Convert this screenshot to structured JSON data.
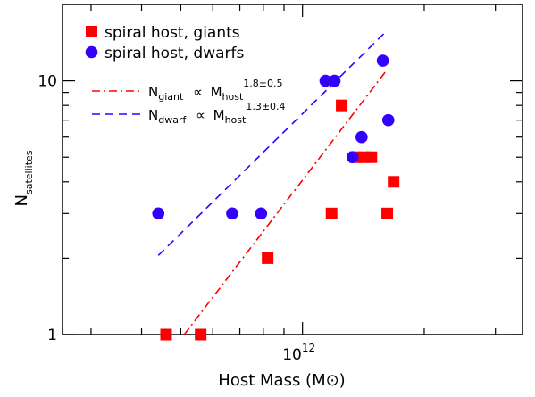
{
  "chart_data": {
    "type": "scatter",
    "xlabel": "Host Mass (M⊙)",
    "ylabel_main": "N",
    "ylabel_sub": "satellites",
    "x_scale": "log",
    "y_scale": "log",
    "xlim": [
      255000000000.0,
      3500000000000.0
    ],
    "ylim": [
      1,
      20
    ],
    "x_ticks": [
      {
        "value": 1000000000000.0,
        "label_base": "10",
        "label_exp": "12"
      }
    ],
    "y_ticks": [
      {
        "value": 1,
        "label": "1"
      },
      {
        "value": 10,
        "label": "10"
      }
    ],
    "legend_position": "top-left",
    "series": [
      {
        "name": "spiral host, giants",
        "marker": "square",
        "color": "#ff0000",
        "points": [
          {
            "x": 460000000000.0,
            "y": 1
          },
          {
            "x": 560000000000.0,
            "y": 1
          },
          {
            "x": 820000000000.0,
            "y": 2
          },
          {
            "x": 1180000000000.0,
            "y": 3
          },
          {
            "x": 1250000000000.0,
            "y": 8
          },
          {
            "x": 1350000000000.0,
            "y": 5
          },
          {
            "x": 1420000000000.0,
            "y": 5
          },
          {
            "x": 1480000000000.0,
            "y": 5
          },
          {
            "x": 1620000000000.0,
            "y": 3
          },
          {
            "x": 1680000000000.0,
            "y": 4
          }
        ]
      },
      {
        "name": "spiral host, dwarfs",
        "marker": "circle",
        "color": "#3300ff",
        "points": [
          {
            "x": 440000000000.0,
            "y": 3
          },
          {
            "x": 670000000000.0,
            "y": 3
          },
          {
            "x": 790000000000.0,
            "y": 3
          },
          {
            "x": 1140000000000.0,
            "y": 10
          },
          {
            "x": 1200000000000.0,
            "y": 10
          },
          {
            "x": 1330000000000.0,
            "y": 5
          },
          {
            "x": 1400000000000.0,
            "y": 6
          },
          {
            "x": 1580000000000.0,
            "y": 12
          },
          {
            "x": 1630000000000.0,
            "y": 7
          }
        ]
      }
    ],
    "fits": [
      {
        "kind": "giant",
        "style": "dash-dot",
        "color": "#ff0000",
        "sub": "giant",
        "exponent": "1.8±0.5",
        "x_range": [
          510000000000.0,
          1600000000000.0
        ],
        "y_range": [
          1,
          10.8
        ]
      },
      {
        "kind": "dwarf",
        "style": "dashed",
        "color": "#3300ff",
        "sub": "dwarf",
        "exponent": "1.3±0.4",
        "x_range": [
          440000000000.0,
          1620000000000.0
        ],
        "y_range": [
          2.05,
          15.8
        ]
      }
    ],
    "fit_text": {
      "prefix": "N",
      "prop": "∝",
      "mass": "M",
      "mass_sub": "host"
    }
  }
}
